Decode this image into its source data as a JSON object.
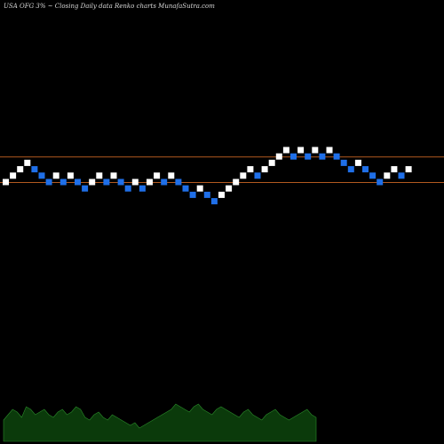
{
  "header": {
    "title": "USA OFG 3% ~ Closing Daily data Renko charts MunafaSutra.com"
  },
  "colors": {
    "background": "#000000",
    "up_brick": "#ffffff",
    "down_brick": "#1f6fe8",
    "reference_line": "#b35a1f",
    "volume_fill": "#0b3a0b",
    "volume_line": "#2a8a2a",
    "label_text": "#cccccc"
  },
  "chart_data": {
    "type": "renko",
    "title": "USA OFG 3% ~ Closing Daily data Renko charts MunafaSutra.com",
    "box_size_note": "3%",
    "reference_lines": [
      {
        "name": "upper",
        "value": 4
      },
      {
        "name": "lower",
        "value": 0
      }
    ],
    "bricks": [
      {
        "x": 0,
        "level": 0,
        "dir": "up"
      },
      {
        "x": 1,
        "level": 1,
        "dir": "up"
      },
      {
        "x": 2,
        "level": 2,
        "dir": "up"
      },
      {
        "x": 3,
        "level": 3,
        "dir": "up"
      },
      {
        "x": 4,
        "level": 2,
        "dir": "down"
      },
      {
        "x": 5,
        "level": 1,
        "dir": "down"
      },
      {
        "x": 6,
        "level": 0,
        "dir": "down"
      },
      {
        "x": 7,
        "level": 1,
        "dir": "up"
      },
      {
        "x": 8,
        "level": 0,
        "dir": "down"
      },
      {
        "x": 9,
        "level": 1,
        "dir": "up"
      },
      {
        "x": 10,
        "level": 0,
        "dir": "down"
      },
      {
        "x": 11,
        "level": -1,
        "dir": "down"
      },
      {
        "x": 12,
        "level": 0,
        "dir": "up"
      },
      {
        "x": 13,
        "level": 1,
        "dir": "up"
      },
      {
        "x": 14,
        "level": 0,
        "dir": "down"
      },
      {
        "x": 15,
        "level": 1,
        "dir": "up"
      },
      {
        "x": 16,
        "level": 0,
        "dir": "down"
      },
      {
        "x": 17,
        "level": -1,
        "dir": "down"
      },
      {
        "x": 18,
        "level": 0,
        "dir": "up"
      },
      {
        "x": 19,
        "level": -1,
        "dir": "down"
      },
      {
        "x": 20,
        "level": 0,
        "dir": "up"
      },
      {
        "x": 21,
        "level": 1,
        "dir": "up"
      },
      {
        "x": 22,
        "level": 0,
        "dir": "down"
      },
      {
        "x": 23,
        "level": 1,
        "dir": "up"
      },
      {
        "x": 24,
        "level": 0,
        "dir": "down"
      },
      {
        "x": 25,
        "level": -1,
        "dir": "down"
      },
      {
        "x": 26,
        "level": -2,
        "dir": "down"
      },
      {
        "x": 27,
        "level": -1,
        "dir": "up"
      },
      {
        "x": 28,
        "level": -2,
        "dir": "down"
      },
      {
        "x": 29,
        "level": -3,
        "dir": "down"
      },
      {
        "x": 30,
        "level": -2,
        "dir": "up"
      },
      {
        "x": 31,
        "level": -1,
        "dir": "up"
      },
      {
        "x": 32,
        "level": 0,
        "dir": "up"
      },
      {
        "x": 33,
        "level": 1,
        "dir": "up"
      },
      {
        "x": 34,
        "level": 2,
        "dir": "up"
      },
      {
        "x": 35,
        "level": 1,
        "dir": "down"
      },
      {
        "x": 36,
        "level": 2,
        "dir": "up"
      },
      {
        "x": 37,
        "level": 3,
        "dir": "up"
      },
      {
        "x": 38,
        "level": 4,
        "dir": "up"
      },
      {
        "x": 39,
        "level": 5,
        "dir": "up"
      },
      {
        "x": 40,
        "level": 4,
        "dir": "down"
      },
      {
        "x": 41,
        "level": 5,
        "dir": "up"
      },
      {
        "x": 42,
        "level": 4,
        "dir": "down"
      },
      {
        "x": 43,
        "level": 5,
        "dir": "up"
      },
      {
        "x": 44,
        "level": 4,
        "dir": "down"
      },
      {
        "x": 45,
        "level": 5,
        "dir": "up"
      },
      {
        "x": 46,
        "level": 4,
        "dir": "down"
      },
      {
        "x": 47,
        "level": 3,
        "dir": "down"
      },
      {
        "x": 48,
        "level": 2,
        "dir": "down"
      },
      {
        "x": 49,
        "level": 3,
        "dir": "up"
      },
      {
        "x": 50,
        "level": 2,
        "dir": "down"
      },
      {
        "x": 51,
        "level": 1,
        "dir": "down"
      },
      {
        "x": 52,
        "level": 0,
        "dir": "down"
      },
      {
        "x": 53,
        "level": 1,
        "dir": "up"
      },
      {
        "x": 54,
        "level": 2,
        "dir": "up"
      },
      {
        "x": 55,
        "level": 1,
        "dir": "down"
      },
      {
        "x": 56,
        "level": 2,
        "dir": "up"
      }
    ],
    "volume": [
      8,
      10,
      12,
      11,
      9,
      13,
      12,
      10,
      11,
      12,
      10,
      9,
      11,
      12,
      10,
      11,
      13,
      12,
      9,
      8,
      10,
      11,
      9,
      8,
      10,
      9,
      8,
      7,
      6,
      7,
      5,
      6,
      7,
      8,
      9,
      10,
      11,
      12,
      14,
      13,
      12,
      11,
      13,
      14,
      12,
      11,
      10,
      12,
      13,
      12,
      11,
      10,
      9,
      11,
      12,
      10,
      9,
      8,
      10,
      11,
      12,
      10,
      9,
      8,
      9,
      10,
      11,
      12,
      10,
      9
    ]
  }
}
